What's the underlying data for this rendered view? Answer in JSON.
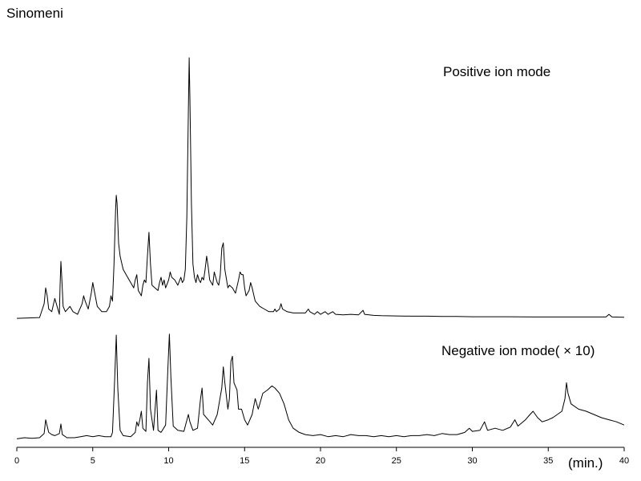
{
  "chart_data": {
    "type": "line",
    "title": "Sinomeni",
    "x_unit_label": "(min.)",
    "xlim": [
      0,
      40
    ],
    "x_ticks": [
      0,
      5,
      10,
      15,
      20,
      25,
      30,
      35,
      40
    ],
    "grid": false,
    "series": [
      {
        "name": "Positive ion mode",
        "color": "#000000",
        "baseline": 2,
        "ylim": [
          0,
          100
        ],
        "points": [
          [
            0,
            1.5
          ],
          [
            1.5,
            1.8
          ],
          [
            1.8,
            7
          ],
          [
            1.9,
            13
          ],
          [
            2.0,
            10
          ],
          [
            2.1,
            5
          ],
          [
            2.3,
            4
          ],
          [
            2.5,
            9
          ],
          [
            2.6,
            7
          ],
          [
            2.8,
            3
          ],
          [
            2.85,
            14
          ],
          [
            2.9,
            23
          ],
          [
            2.95,
            18
          ],
          [
            3.05,
            6
          ],
          [
            3.2,
            4
          ],
          [
            3.5,
            6
          ],
          [
            3.7,
            4
          ],
          [
            4.0,
            3
          ],
          [
            4.3,
            7
          ],
          [
            4.4,
            10
          ],
          [
            4.5,
            8
          ],
          [
            4.7,
            5
          ],
          [
            4.9,
            11
          ],
          [
            5.0,
            15
          ],
          [
            5.1,
            12
          ],
          [
            5.3,
            6
          ],
          [
            5.6,
            4
          ],
          [
            5.9,
            4
          ],
          [
            6.1,
            6
          ],
          [
            6.2,
            10
          ],
          [
            6.3,
            8
          ],
          [
            6.4,
            22
          ],
          [
            6.5,
            42
          ],
          [
            6.55,
            48
          ],
          [
            6.6,
            45
          ],
          [
            6.7,
            30
          ],
          [
            6.8,
            25
          ],
          [
            7.0,
            20
          ],
          [
            7.2,
            18
          ],
          [
            7.5,
            15
          ],
          [
            7.7,
            13
          ],
          [
            7.8,
            16
          ],
          [
            7.9,
            18
          ],
          [
            8.0,
            12
          ],
          [
            8.2,
            10
          ],
          [
            8.3,
            14
          ],
          [
            8.4,
            16
          ],
          [
            8.5,
            15
          ],
          [
            8.6,
            25
          ],
          [
            8.7,
            34
          ],
          [
            8.8,
            22
          ],
          [
            8.9,
            14
          ],
          [
            9.1,
            13
          ],
          [
            9.3,
            12
          ],
          [
            9.4,
            15
          ],
          [
            9.5,
            17
          ],
          [
            9.6,
            14
          ],
          [
            9.7,
            16
          ],
          [
            9.8,
            13
          ],
          [
            10.0,
            16
          ],
          [
            10.1,
            19
          ],
          [
            10.2,
            17
          ],
          [
            10.4,
            16
          ],
          [
            10.6,
            14
          ],
          [
            10.8,
            17
          ],
          [
            10.9,
            15
          ],
          [
            11.0,
            16
          ],
          [
            11.1,
            20
          ],
          [
            11.2,
            40
          ],
          [
            11.3,
            80
          ],
          [
            11.35,
            100
          ],
          [
            11.4,
            85
          ],
          [
            11.5,
            45
          ],
          [
            11.6,
            22
          ],
          [
            11.7,
            17
          ],
          [
            11.8,
            15
          ],
          [
            11.9,
            18
          ],
          [
            12.0,
            16
          ],
          [
            12.1,
            15
          ],
          [
            12.2,
            17
          ],
          [
            12.3,
            16
          ],
          [
            12.4,
            20
          ],
          [
            12.5,
            25
          ],
          [
            12.6,
            21
          ],
          [
            12.7,
            16
          ],
          [
            12.9,
            14
          ],
          [
            13.0,
            19
          ],
          [
            13.1,
            17
          ],
          [
            13.2,
            15
          ],
          [
            13.3,
            14
          ],
          [
            13.4,
            18
          ],
          [
            13.5,
            28
          ],
          [
            13.6,
            30
          ],
          [
            13.7,
            20
          ],
          [
            13.9,
            13
          ],
          [
            14.0,
            14
          ],
          [
            14.2,
            13
          ],
          [
            14.4,
            11
          ],
          [
            14.6,
            16
          ],
          [
            14.7,
            19
          ],
          [
            14.8,
            18
          ],
          [
            14.9,
            18
          ],
          [
            15.0,
            13
          ],
          [
            15.1,
            10
          ],
          [
            15.3,
            12
          ],
          [
            15.4,
            15
          ],
          [
            15.5,
            13
          ],
          [
            15.7,
            8
          ],
          [
            16.0,
            6
          ],
          [
            16.3,
            5
          ],
          [
            16.6,
            4
          ],
          [
            16.9,
            4
          ],
          [
            17.0,
            5
          ],
          [
            17.1,
            4
          ],
          [
            17.3,
            5
          ],
          [
            17.4,
            7
          ],
          [
            17.5,
            5
          ],
          [
            17.8,
            4
          ],
          [
            18.2,
            3.5
          ],
          [
            18.6,
            3.5
          ],
          [
            19.0,
            3.5
          ],
          [
            19.2,
            5
          ],
          [
            19.3,
            4
          ],
          [
            19.6,
            3
          ],
          [
            19.8,
            4
          ],
          [
            20.0,
            3
          ],
          [
            20.3,
            4
          ],
          [
            20.5,
            3
          ],
          [
            20.8,
            4
          ],
          [
            21.0,
            3
          ],
          [
            21.5,
            2.8
          ],
          [
            22.0,
            3
          ],
          [
            22.5,
            2.8
          ],
          [
            22.8,
            4.5
          ],
          [
            22.9,
            3
          ],
          [
            23.5,
            2.6
          ],
          [
            24.0,
            2.5
          ],
          [
            25.0,
            2.4
          ],
          [
            26.0,
            2.3
          ],
          [
            27.0,
            2.3
          ],
          [
            28.0,
            2.2
          ],
          [
            29.0,
            2.2
          ],
          [
            30.0,
            2.1
          ],
          [
            32.0,
            2.1
          ],
          [
            34.0,
            2.0
          ],
          [
            36.0,
            2.0
          ],
          [
            38.0,
            2.0
          ],
          [
            38.8,
            2.0
          ],
          [
            39.0,
            3
          ],
          [
            39.2,
            2.0
          ],
          [
            40.0,
            1.9
          ]
        ]
      },
      {
        "name": "Negative ion mode( × 10)",
        "color": "#000000",
        "baseline": 2,
        "ylim": [
          0,
          100
        ],
        "points": [
          [
            0,
            2
          ],
          [
            0.5,
            3
          ],
          [
            1.0,
            2.5
          ],
          [
            1.5,
            3
          ],
          [
            1.8,
            7
          ],
          [
            1.9,
            20
          ],
          [
            2.0,
            14
          ],
          [
            2.1,
            8
          ],
          [
            2.3,
            6
          ],
          [
            2.5,
            5
          ],
          [
            2.8,
            7
          ],
          [
            2.9,
            16
          ],
          [
            3.0,
            6
          ],
          [
            3.3,
            3
          ],
          [
            3.8,
            3
          ],
          [
            4.2,
            4
          ],
          [
            4.6,
            5
          ],
          [
            5.0,
            4
          ],
          [
            5.4,
            5
          ],
          [
            5.8,
            4
          ],
          [
            6.2,
            4
          ],
          [
            6.3,
            8
          ],
          [
            6.45,
            60
          ],
          [
            6.55,
            100
          ],
          [
            6.65,
            50
          ],
          [
            6.8,
            10
          ],
          [
            7.0,
            5
          ],
          [
            7.5,
            4
          ],
          [
            7.8,
            8
          ],
          [
            7.9,
            18
          ],
          [
            8.0,
            14
          ],
          [
            8.1,
            20
          ],
          [
            8.2,
            28
          ],
          [
            8.3,
            12
          ],
          [
            8.5,
            9
          ],
          [
            8.6,
            55
          ],
          [
            8.7,
            78
          ],
          [
            8.8,
            30
          ],
          [
            9.0,
            10
          ],
          [
            9.2,
            48
          ],
          [
            9.3,
            10
          ],
          [
            9.5,
            8
          ],
          [
            9.8,
            15
          ],
          [
            9.95,
            70
          ],
          [
            10.05,
            101
          ],
          [
            10.15,
            60
          ],
          [
            10.3,
            14
          ],
          [
            10.6,
            10
          ],
          [
            11.0,
            9
          ],
          [
            11.3,
            25
          ],
          [
            11.4,
            18
          ],
          [
            11.6,
            10
          ],
          [
            11.9,
            12
          ],
          [
            12.1,
            40
          ],
          [
            12.2,
            50
          ],
          [
            12.3,
            25
          ],
          [
            12.6,
            20
          ],
          [
            12.9,
            15
          ],
          [
            13.2,
            25
          ],
          [
            13.5,
            50
          ],
          [
            13.6,
            70
          ],
          [
            13.7,
            55
          ],
          [
            13.9,
            30
          ],
          [
            14.0,
            40
          ],
          [
            14.1,
            75
          ],
          [
            14.2,
            80
          ],
          [
            14.3,
            55
          ],
          [
            14.5,
            48
          ],
          [
            14.6,
            30
          ],
          [
            14.8,
            30
          ],
          [
            15.0,
            20
          ],
          [
            15.2,
            15
          ],
          [
            15.5,
            25
          ],
          [
            15.7,
            40
          ],
          [
            15.9,
            30
          ],
          [
            16.2,
            45
          ],
          [
            16.5,
            48
          ],
          [
            16.8,
            52
          ],
          [
            17.0,
            50
          ],
          [
            17.3,
            45
          ],
          [
            17.6,
            35
          ],
          [
            17.9,
            20
          ],
          [
            18.2,
            12
          ],
          [
            18.6,
            8
          ],
          [
            19.0,
            6
          ],
          [
            19.5,
            5
          ],
          [
            20.0,
            6
          ],
          [
            20.5,
            4
          ],
          [
            21.0,
            5
          ],
          [
            21.5,
            4
          ],
          [
            22.0,
            6
          ],
          [
            22.5,
            5
          ],
          [
            23.0,
            5
          ],
          [
            23.5,
            4
          ],
          [
            24.0,
            5
          ],
          [
            24.5,
            4
          ],
          [
            25.0,
            5
          ],
          [
            25.5,
            4
          ],
          [
            26.0,
            5
          ],
          [
            26.5,
            5
          ],
          [
            27.0,
            6
          ],
          [
            27.5,
            5
          ],
          [
            28.0,
            7
          ],
          [
            28.5,
            6
          ],
          [
            29.0,
            6
          ],
          [
            29.5,
            8
          ],
          [
            29.8,
            12
          ],
          [
            30.0,
            9
          ],
          [
            30.5,
            10
          ],
          [
            30.8,
            18
          ],
          [
            31.0,
            10
          ],
          [
            31.5,
            12
          ],
          [
            32.0,
            10
          ],
          [
            32.5,
            13
          ],
          [
            32.8,
            20
          ],
          [
            33.0,
            14
          ],
          [
            33.5,
            20
          ],
          [
            33.8,
            25
          ],
          [
            34.0,
            28
          ],
          [
            34.3,
            22
          ],
          [
            34.6,
            18
          ],
          [
            35.0,
            20
          ],
          [
            35.3,
            22
          ],
          [
            35.6,
            25
          ],
          [
            35.9,
            28
          ],
          [
            36.1,
            40
          ],
          [
            36.2,
            55
          ],
          [
            36.3,
            45
          ],
          [
            36.5,
            35
          ],
          [
            37.0,
            30
          ],
          [
            37.5,
            28
          ],
          [
            38.0,
            25
          ],
          [
            38.5,
            22
          ],
          [
            39.0,
            20
          ],
          [
            39.5,
            18
          ],
          [
            40.0,
            15
          ]
        ]
      }
    ]
  }
}
